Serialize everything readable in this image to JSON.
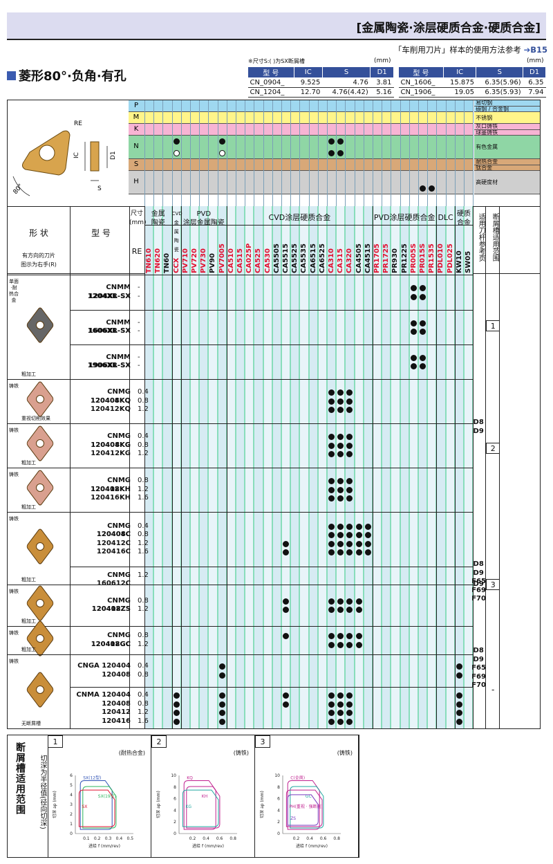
{
  "banner": {
    "title": "[金属陶瓷·涂层硬质合金·硬质合金]"
  },
  "subtitle": {
    "text": "「车削用刀片」样本的使用方法参考",
    "ref": "B15"
  },
  "shape_title": "菱形80°·负角·有孔",
  "dim_table": {
    "note": "※尺寸S:(  )为SX断屑槽",
    "unit": "(mm)",
    "headers": [
      "型 号",
      "IC",
      "S",
      "D1"
    ],
    "left_rows": [
      [
        "CN_0904_",
        "9.525",
        "4.76",
        "3.81"
      ],
      [
        "CN_1204_",
        "12.70",
        "4.76(4.42)",
        "5.16"
      ]
    ],
    "right_rows": [
      [
        "CN_1606_",
        "15.875",
        "6.35(5.96)",
        "6.35"
      ],
      [
        "CN_1906_",
        "19.05",
        "6.35(5.93)",
        "7.94"
      ]
    ]
  },
  "materials": [
    {
      "code": "P",
      "names": [
        "易切钢",
        "碳钢 / 合金钢"
      ],
      "color": "#9fd8f0"
    },
    {
      "code": "M",
      "names": [
        "不锈钢"
      ],
      "color": "#fff58a"
    },
    {
      "code": "K",
      "names": [
        "灰口铸铁",
        "球墨铸铁"
      ],
      "color": "#f7b4d4"
    },
    {
      "code": "N",
      "names": [
        "有色金属"
      ],
      "color": "#8fd6a5"
    },
    {
      "code": "S",
      "names": [
        "耐热合金",
        "钛合金"
      ],
      "color": "#d8a878"
    },
    {
      "code": "H",
      "names": [
        "高硬度材"
      ],
      "color": "#cfcfcf"
    }
  ],
  "diagram_labels": {
    "re": "RE",
    "ic": "IC",
    "d1": "D1",
    "s": "S",
    "angle": "80°"
  },
  "headers": {
    "shape": "形 状",
    "model": "型 号",
    "rotation_note": "有方向的刀片\n图示为右手(R)",
    "size": "尺寸\n(mm)",
    "re": "RE",
    "g_cermet": "金属\n陶瓷",
    "g_cvd_cermet": "CVD\n金属陶瓷",
    "g_pvd_cermet": "PVD\n涂层金属陶瓷",
    "g_cvd": "CVD涂层硬质合金",
    "g_pvd": "PVD涂层硬质合金",
    "g_dlc": "DLC",
    "g_carbide": "硬质\n合金",
    "holder_ref": "适用刀杆参考页",
    "chip_range": "断屑槽适用范围"
  },
  "grades": [
    {
      "n": "TN610",
      "c": "red"
    },
    {
      "n": "TN620",
      "c": "red"
    },
    {
      "n": "TN60",
      "c": "blk"
    },
    {
      "n": "CCX",
      "c": "red"
    },
    {
      "n": "PV710",
      "c": "red"
    },
    {
      "n": "PV720",
      "c": "red"
    },
    {
      "n": "PV730",
      "c": "red"
    },
    {
      "n": "PV90",
      "c": "blk"
    },
    {
      "n": "PV7005",
      "c": "red"
    },
    {
      "n": "CA510",
      "c": "red"
    },
    {
      "n": "CA515",
      "c": "red"
    },
    {
      "n": "CA025P",
      "c": "red"
    },
    {
      "n": "CA525",
      "c": "red"
    },
    {
      "n": "CA530",
      "c": "red"
    },
    {
      "n": "CA5505",
      "c": "blk"
    },
    {
      "n": "CA5515",
      "c": "blk"
    },
    {
      "n": "CA5525",
      "c": "blk"
    },
    {
      "n": "CA5535",
      "c": "blk"
    },
    {
      "n": "CA6515",
      "c": "blk"
    },
    {
      "n": "CA6525",
      "c": "blk"
    },
    {
      "n": "CA310",
      "c": "red"
    },
    {
      "n": "CA315",
      "c": "red"
    },
    {
      "n": "CA320",
      "c": "red"
    },
    {
      "n": "CA4505",
      "c": "blk"
    },
    {
      "n": "CA4515",
      "c": "blk"
    },
    {
      "n": "PR1705",
      "c": "red"
    },
    {
      "n": "PR1725",
      "c": "red"
    },
    {
      "n": "PR930",
      "c": "blk"
    },
    {
      "n": "PR1225",
      "c": "blk"
    },
    {
      "n": "PR005S",
      "c": "red"
    },
    {
      "n": "PR015S",
      "c": "red"
    },
    {
      "n": "PR1535",
      "c": "red"
    },
    {
      "n": "PDL010",
      "c": "red"
    },
    {
      "n": "PDL025",
      "c": "red"
    },
    {
      "n": "KW10",
      "c": "blk"
    },
    {
      "n": "SW05",
      "c": "blk"
    }
  ],
  "rows": [
    {
      "models": [
        "CNMM 1204XR-SX",
        "1204XL-SX"
      ],
      "re": [
        "-",
        "-"
      ]
    },
    {
      "models": [
        "CNMM 1606XR-SX",
        "1606XL-SX"
      ],
      "re": [
        "-",
        "-"
      ]
    },
    {
      "models": [
        "CNMM 1906XR-SX",
        "1906XL-SX"
      ],
      "re": [
        "-",
        "-"
      ]
    },
    {
      "models": [
        "CNMG 120404KQ",
        "120408KQ",
        "120412KQ"
      ],
      "re": [
        "0.4",
        "0.8",
        "1.2"
      ]
    },
    {
      "models": [
        "CNMG 120404KG",
        "120408KG",
        "120412KG"
      ],
      "re": [
        "0.4",
        "0.8",
        "1.2"
      ]
    },
    {
      "models": [
        "CNMG 120408KH",
        "120412KH",
        "120416KH"
      ],
      "re": [
        "0.8",
        "1.2",
        "1.6"
      ]
    },
    {
      "models": [
        "CNMG 120404C",
        "120408C",
        "120412C",
        "120416C"
      ],
      "re": [
        "0.4",
        "0.8",
        "1.2",
        "1.6"
      ]
    },
    {
      "models": [
        "CNMG 160612C"
      ],
      "re": [
        "1.2"
      ]
    },
    {
      "models": [
        "CNMG 120408ZS",
        "120412ZS"
      ],
      "re": [
        "0.8",
        "1.2"
      ]
    },
    {
      "models": [
        "CNMG 120408GC",
        "120412GC"
      ],
      "re": [
        "0.8",
        "1.2"
      ]
    },
    {
      "models": [
        "CNGA 120404",
        "120408"
      ],
      "re": [
        "0.4",
        "0.8"
      ]
    },
    {
      "models": [
        "CNMA 120404",
        "120408",
        "120412",
        "120416"
      ],
      "re": [
        "0.4",
        "0.8",
        "1.2",
        "1.6"
      ]
    }
  ],
  "shape_labels": {
    "sx": [
      "单面·耐热合金",
      "粗加工"
    ],
    "kq": [
      "铸铁",
      "重视切削效果"
    ],
    "kg": [
      "铸铁",
      "粗加工"
    ],
    "kh": [
      "铸铁",
      "粗加工"
    ],
    "c": [
      "铸铁",
      "粗加工"
    ],
    "zs": [
      "铸铁",
      "粗加工"
    ],
    "gc": [
      "铸铁",
      "粗加工"
    ],
    "cna": [
      "铸铁",
      "无断屑槽"
    ]
  },
  "holder_refs": {
    "a": "D8\nD9",
    "b": "D8\nD9\nF65\nF69\nF70",
    "c": "D9",
    "d": "D8\nD9\nF65\nF69\nF70"
  },
  "chip_refs": [
    "1",
    "2",
    "3",
    "-"
  ],
  "bottom": {
    "title": "断屑槽适用范围",
    "note": "切深为半径值(径向切深)",
    "charts": [
      {
        "num": "1",
        "material": "(耐热合金)",
        "labels": [
          "SX(12型)",
          "SX(19型)",
          "SX\n(16型)"
        ],
        "ylabel": "切深 ap (mm)",
        "xlabel": "进给 f (mm/rev)",
        "yticks": [
          "0",
          "1",
          "2",
          "3",
          "4",
          "5",
          "6"
        ],
        "xticks": [
          "0.1",
          "0.2",
          "0.3",
          "0.4",
          "0.5"
        ]
      },
      {
        "num": "2",
        "material": "(铸铁)",
        "labels": [
          "KQ",
          "KH",
          "KG"
        ],
        "ylabel": "切深 ap (mm)",
        "xlabel": "进给 f (mm/rev)",
        "yticks": [
          "0",
          "2",
          "4",
          "6",
          "8",
          "10"
        ],
        "xticks": [
          "0.2",
          "0.4",
          "0.6",
          "0.8"
        ]
      },
      {
        "num": "3",
        "material": "(铸铁)",
        "labels": [
          "C(全周)",
          "GC",
          "PH(重视 · 强断削)",
          "ZS"
        ],
        "ylabel": "切深 ap (mm)",
        "xlabel": "进给 f (mm/rev)",
        "yticks": [
          "0",
          "2",
          "4",
          "6",
          "8",
          "10"
        ],
        "xticks": [
          "0.2",
          "0.4",
          "0.6",
          "0.8"
        ]
      }
    ]
  }
}
